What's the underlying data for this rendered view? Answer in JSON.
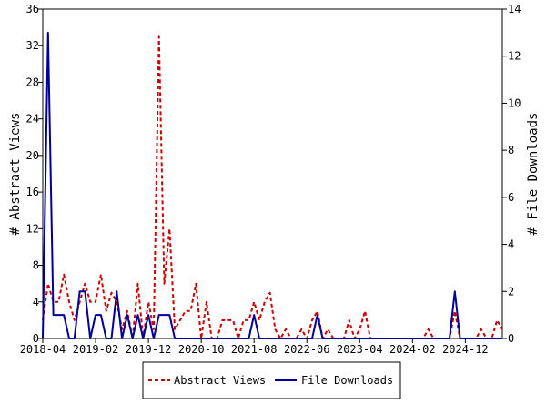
{
  "chart_data": {
    "type": "line",
    "title": "",
    "ylabel_left": "# Abstract Views",
    "ylabel_right": "# File Downloads",
    "ylim_left": [
      0,
      36
    ],
    "ylim_right": [
      0,
      14
    ],
    "y_ticks_left": [
      0,
      4,
      8,
      12,
      16,
      20,
      24,
      28,
      32,
      36
    ],
    "y_ticks_right": [
      0,
      2,
      4,
      6,
      8,
      10,
      12,
      14
    ],
    "x_range": [
      "2018-04",
      "2025-07"
    ],
    "x_ticks": [
      "2018-04",
      "2019-02",
      "2019-12",
      "2020-10",
      "2021-08",
      "2022-06",
      "2023-04",
      "2024-02",
      "2024-12"
    ],
    "grid": false,
    "legend_position": "bottom",
    "series": [
      {
        "name": "Abstract Views",
        "axis": "left",
        "color": "#cc0000",
        "style": "dashed",
        "points": [
          [
            "2018-04",
            2
          ],
          [
            "2018-05",
            6
          ],
          [
            "2018-06",
            4
          ],
          [
            "2018-07",
            4
          ],
          [
            "2018-08",
            7
          ],
          [
            "2018-09",
            4
          ],
          [
            "2018-10",
            2
          ],
          [
            "2018-11",
            4
          ],
          [
            "2018-12",
            6
          ],
          [
            "2019-01",
            4
          ],
          [
            "2019-02",
            4
          ],
          [
            "2019-03",
            7
          ],
          [
            "2019-04",
            3
          ],
          [
            "2019-05",
            5
          ],
          [
            "2019-06",
            4
          ],
          [
            "2019-07",
            1
          ],
          [
            "2019-08",
            3
          ],
          [
            "2019-09",
            0
          ],
          [
            "2019-10",
            6
          ],
          [
            "2019-11",
            0
          ],
          [
            "2019-12",
            4
          ],
          [
            "2020-01",
            1
          ],
          [
            "2020-02",
            33
          ],
          [
            "2020-03",
            6
          ],
          [
            "2020-04",
            12
          ],
          [
            "2020-05",
            1
          ],
          [
            "2020-06",
            2
          ],
          [
            "2020-07",
            3
          ],
          [
            "2020-08",
            3
          ],
          [
            "2020-09",
            6
          ],
          [
            "2020-10",
            0
          ],
          [
            "2020-11",
            4
          ],
          [
            "2020-12",
            0
          ],
          [
            "2021-01",
            0
          ],
          [
            "2021-02",
            2
          ],
          [
            "2021-03",
            2
          ],
          [
            "2021-04",
            2
          ],
          [
            "2021-05",
            0
          ],
          [
            "2021-06",
            2
          ],
          [
            "2021-07",
            2
          ],
          [
            "2021-08",
            4
          ],
          [
            "2021-09",
            2
          ],
          [
            "2021-10",
            4
          ],
          [
            "2021-11",
            5
          ],
          [
            "2021-12",
            1
          ],
          [
            "2022-01",
            0
          ],
          [
            "2022-02",
            1
          ],
          [
            "2022-03",
            0
          ],
          [
            "2022-04",
            0
          ],
          [
            "2022-05",
            1
          ],
          [
            "2022-06",
            0
          ],
          [
            "2022-07",
            2
          ],
          [
            "2022-08",
            3
          ],
          [
            "2022-09",
            0
          ],
          [
            "2022-10",
            1
          ],
          [
            "2022-11",
            0
          ],
          [
            "2022-12",
            0
          ],
          [
            "2023-01",
            0
          ],
          [
            "2023-02",
            2
          ],
          [
            "2023-03",
            0
          ],
          [
            "2023-04",
            1
          ],
          [
            "2023-05",
            3
          ],
          [
            "2023-06",
            0
          ],
          [
            "2023-07",
            0
          ],
          [
            "2023-08",
            0
          ],
          [
            "2023-09",
            0
          ],
          [
            "2023-10",
            0
          ],
          [
            "2023-11",
            0
          ],
          [
            "2023-12",
            0
          ],
          [
            "2024-01",
            0
          ],
          [
            "2024-02",
            0
          ],
          [
            "2024-03",
            0
          ],
          [
            "2024-04",
            0
          ],
          [
            "2024-05",
            1
          ],
          [
            "2024-06",
            0
          ],
          [
            "2024-07",
            0
          ],
          [
            "2024-08",
            0
          ],
          [
            "2024-09",
            0
          ],
          [
            "2024-10",
            3
          ],
          [
            "2024-11",
            0
          ],
          [
            "2024-12",
            0
          ],
          [
            "2025-01",
            0
          ],
          [
            "2025-02",
            0
          ],
          [
            "2025-03",
            1
          ],
          [
            "2025-04",
            0
          ],
          [
            "2025-05",
            0
          ],
          [
            "2025-06",
            2
          ],
          [
            "2025-07",
            1
          ]
        ]
      },
      {
        "name": "File Downloads",
        "axis": "right",
        "color": "#000099",
        "style": "solid",
        "points": [
          [
            "2018-04",
            0
          ],
          [
            "2018-05",
            13
          ],
          [
            "2018-06",
            1
          ],
          [
            "2018-07",
            1
          ],
          [
            "2018-08",
            1
          ],
          [
            "2018-09",
            0
          ],
          [
            "2018-10",
            0
          ],
          [
            "2018-11",
            2
          ],
          [
            "2018-12",
            2
          ],
          [
            "2019-01",
            0
          ],
          [
            "2019-02",
            1
          ],
          [
            "2019-03",
            1
          ],
          [
            "2019-04",
            0
          ],
          [
            "2019-05",
            0
          ],
          [
            "2019-06",
            2
          ],
          [
            "2019-07",
            0
          ],
          [
            "2019-08",
            1
          ],
          [
            "2019-09",
            0
          ],
          [
            "2019-10",
            1
          ],
          [
            "2019-11",
            0
          ],
          [
            "2019-12",
            1
          ],
          [
            "2020-01",
            0
          ],
          [
            "2020-02",
            1
          ],
          [
            "2020-03",
            1
          ],
          [
            "2020-04",
            1
          ],
          [
            "2020-05",
            0
          ],
          [
            "2020-06",
            0
          ],
          [
            "2020-07",
            0
          ],
          [
            "2020-08",
            0
          ],
          [
            "2020-09",
            0
          ],
          [
            "2020-10",
            0
          ],
          [
            "2020-11",
            0
          ],
          [
            "2020-12",
            0
          ],
          [
            "2021-01",
            0
          ],
          [
            "2021-02",
            0
          ],
          [
            "2021-03",
            0
          ],
          [
            "2021-04",
            0
          ],
          [
            "2021-05",
            0
          ],
          [
            "2021-06",
            0
          ],
          [
            "2021-07",
            0
          ],
          [
            "2021-08",
            1
          ],
          [
            "2021-09",
            0
          ],
          [
            "2021-10",
            0
          ],
          [
            "2021-11",
            0
          ],
          [
            "2021-12",
            0
          ],
          [
            "2022-01",
            0
          ],
          [
            "2022-02",
            0
          ],
          [
            "2022-03",
            0
          ],
          [
            "2022-04",
            0
          ],
          [
            "2022-05",
            0
          ],
          [
            "2022-06",
            0
          ],
          [
            "2022-07",
            0
          ],
          [
            "2022-08",
            1
          ],
          [
            "2022-09",
            0
          ],
          [
            "2022-10",
            0
          ],
          [
            "2022-11",
            0
          ],
          [
            "2022-12",
            0
          ],
          [
            "2023-01",
            0
          ],
          [
            "2023-02",
            0
          ],
          [
            "2023-03",
            0
          ],
          [
            "2023-04",
            0
          ],
          [
            "2023-05",
            0
          ],
          [
            "2023-06",
            0
          ],
          [
            "2023-07",
            0
          ],
          [
            "2023-08",
            0
          ],
          [
            "2023-09",
            0
          ],
          [
            "2023-10",
            0
          ],
          [
            "2023-11",
            0
          ],
          [
            "2023-12",
            0
          ],
          [
            "2024-01",
            0
          ],
          [
            "2024-02",
            0
          ],
          [
            "2024-03",
            0
          ],
          [
            "2024-04",
            0
          ],
          [
            "2024-05",
            0
          ],
          [
            "2024-06",
            0
          ],
          [
            "2024-07",
            0
          ],
          [
            "2024-08",
            0
          ],
          [
            "2024-09",
            0
          ],
          [
            "2024-10",
            2
          ],
          [
            "2024-11",
            0
          ],
          [
            "2024-12",
            0
          ],
          [
            "2025-01",
            0
          ],
          [
            "2025-02",
            0
          ],
          [
            "2025-03",
            0
          ],
          [
            "2025-04",
            0
          ],
          [
            "2025-05",
            0
          ],
          [
            "2025-06",
            0
          ],
          [
            "2025-07",
            0
          ]
        ]
      }
    ]
  }
}
